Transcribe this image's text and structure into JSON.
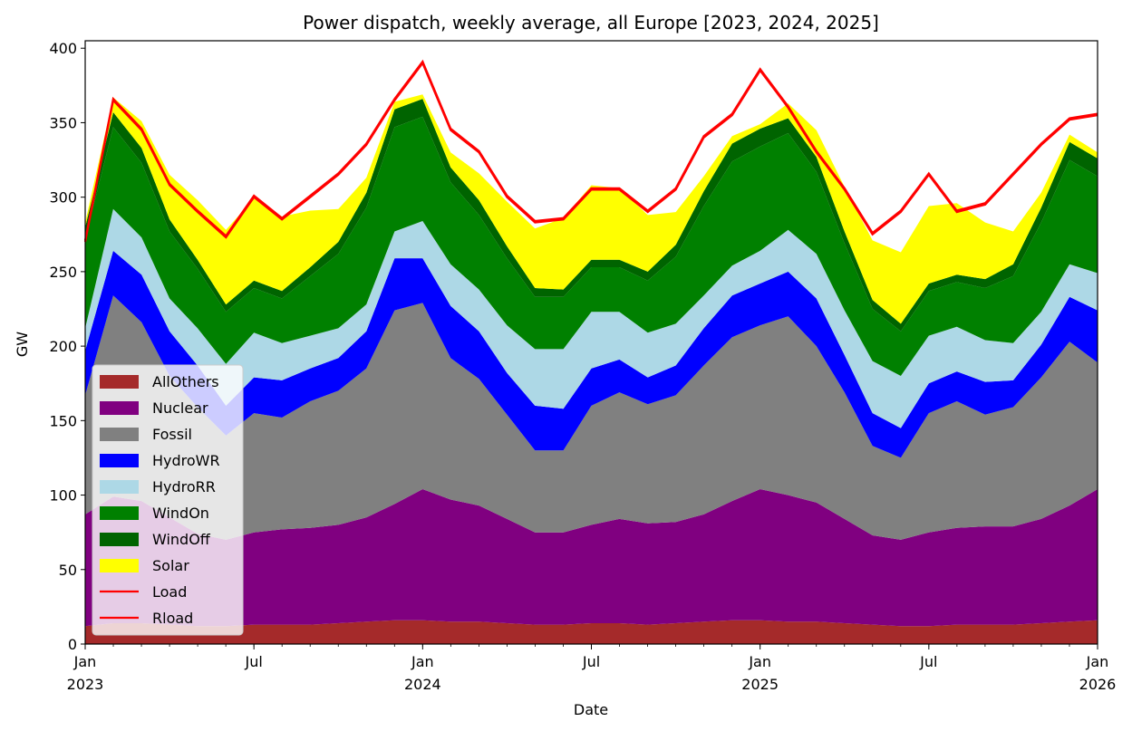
{
  "chart_data": {
    "type": "area",
    "stacked": true,
    "title": "Power dispatch, weekly average, all Europe [2023, 2024, 2025]",
    "xlabel": "Date",
    "ylabel": "GW",
    "ylim": [
      0,
      405
    ],
    "xlim_years": [
      2023.0,
      2026.0
    ],
    "yticks": [
      0,
      50,
      100,
      150,
      200,
      250,
      300,
      350,
      400
    ],
    "xticks": [
      {
        "pos": 2023.0,
        "line1": "Jan",
        "line2": "2023"
      },
      {
        "pos": 2023.5,
        "line1": "Jul",
        "line2": ""
      },
      {
        "pos": 2024.0,
        "line1": "Jan",
        "line2": "2024"
      },
      {
        "pos": 2024.5,
        "line1": "Jul",
        "line2": ""
      },
      {
        "pos": 2025.0,
        "line1": "Jan",
        "line2": "2025"
      },
      {
        "pos": 2025.5,
        "line1": "Jul",
        "line2": ""
      },
      {
        "pos": 2026.0,
        "line1": "Jan",
        "line2": "2026"
      }
    ],
    "x_points": [
      2023.0,
      2023.083,
      2023.167,
      2023.25,
      2023.333,
      2023.417,
      2023.5,
      2023.583,
      2023.667,
      2023.75,
      2023.833,
      2023.917,
      2024.0,
      2024.083,
      2024.167,
      2024.25,
      2024.333,
      2024.417,
      2024.5,
      2024.583,
      2024.667,
      2024.75,
      2024.833,
      2024.917,
      2025.0,
      2025.083,
      2025.167,
      2025.25,
      2025.333,
      2025.417,
      2025.5,
      2025.583,
      2025.667,
      2025.75,
      2025.833,
      2025.917,
      2026.0
    ],
    "series": [
      {
        "name": "AllOthers",
        "color": "#a52a2a",
        "values": [
          12,
          14,
          14,
          13,
          12,
          12,
          13,
          13,
          13,
          14,
          15,
          16,
          16,
          15,
          15,
          14,
          13,
          13,
          14,
          14,
          13,
          14,
          15,
          16,
          16,
          15,
          15,
          14,
          13,
          12,
          12,
          13,
          13,
          13,
          14,
          15,
          16
        ]
      },
      {
        "name": "Nuclear",
        "color": "#800080",
        "values": [
          75,
          85,
          82,
          72,
          62,
          58,
          62,
          64,
          65,
          66,
          70,
          78,
          88,
          82,
          78,
          70,
          62,
          62,
          66,
          70,
          68,
          68,
          72,
          80,
          88,
          85,
          80,
          70,
          60,
          58,
          63,
          65,
          66,
          66,
          70,
          78,
          88
        ]
      },
      {
        "name": "Fossil",
        "color": "#808080",
        "values": [
          80,
          135,
          120,
          95,
          85,
          70,
          80,
          75,
          85,
          90,
          100,
          130,
          125,
          95,
          85,
          70,
          55,
          55,
          80,
          85,
          80,
          85,
          100,
          110,
          110,
          120,
          105,
          85,
          60,
          55,
          80,
          85,
          75,
          80,
          95,
          110,
          85
        ]
      },
      {
        "name": "HydroWR",
        "color": "#0000ff",
        "values": [
          30,
          30,
          32,
          30,
          28,
          20,
          24,
          25,
          22,
          22,
          25,
          35,
          30,
          35,
          32,
          28,
          30,
          28,
          25,
          22,
          18,
          20,
          25,
          28,
          28,
          30,
          32,
          25,
          22,
          20,
          20,
          20,
          22,
          18,
          22,
          30,
          35
        ]
      },
      {
        "name": "HydroRR",
        "color": "#add8e6",
        "values": [
          15,
          28,
          25,
          22,
          25,
          28,
          30,
          25,
          22,
          20,
          18,
          18,
          25,
          28,
          28,
          32,
          38,
          40,
          38,
          32,
          30,
          28,
          22,
          20,
          22,
          28,
          30,
          30,
          35,
          35,
          32,
          30,
          28,
          25,
          22,
          22,
          25
        ]
      },
      {
        "name": "WindOn",
        "color": "#008000",
        "values": [
          60,
          55,
          50,
          45,
          40,
          35,
          30,
          30,
          40,
          50,
          65,
          70,
          70,
          55,
          50,
          45,
          35,
          35,
          30,
          30,
          35,
          45,
          60,
          70,
          70,
          65,
          55,
          45,
          35,
          30,
          30,
          30,
          35,
          45,
          60,
          70,
          65
        ]
      },
      {
        "name": "WindOff",
        "color": "#006400",
        "values": [
          8,
          10,
          10,
          8,
          6,
          5,
          5,
          5,
          6,
          8,
          10,
          12,
          12,
          10,
          10,
          8,
          6,
          5,
          5,
          5,
          6,
          8,
          10,
          12,
          12,
          10,
          10,
          8,
          6,
          5,
          5,
          5,
          6,
          8,
          10,
          12,
          12
        ]
      },
      {
        "name": "Solar",
        "color": "#ffff00",
        "values": [
          3,
          10,
          18,
          30,
          40,
          50,
          55,
          50,
          38,
          22,
          10,
          5,
          3,
          10,
          18,
          30,
          40,
          48,
          50,
          48,
          38,
          22,
          10,
          5,
          3,
          10,
          18,
          30,
          40,
          48,
          52,
          48,
          38,
          22,
          10,
          5,
          4
        ]
      }
    ],
    "lines": [
      {
        "name": "Load",
        "color": "#ff0000",
        "values": [
          270,
          365,
          345,
          308,
          290,
          273,
          300,
          285,
          300,
          315,
          335,
          365,
          390,
          345,
          330,
          300,
          283,
          285,
          305,
          305,
          290,
          305,
          340,
          355,
          385,
          360,
          330,
          305,
          275,
          290,
          315,
          290,
          295,
          315,
          335,
          352,
          355
        ]
      },
      {
        "name": "Rload",
        "color": "#ff0000",
        "values": [
          271,
          366,
          346,
          309,
          291,
          274,
          301,
          286,
          301,
          316,
          336,
          366,
          391,
          346,
          331,
          301,
          284,
          286,
          306,
          306,
          291,
          306,
          341,
          356,
          386,
          361,
          331,
          306,
          276,
          291,
          316,
          291,
          296,
          316,
          336,
          353,
          356
        ]
      }
    ],
    "legend_position": "center-left"
  }
}
